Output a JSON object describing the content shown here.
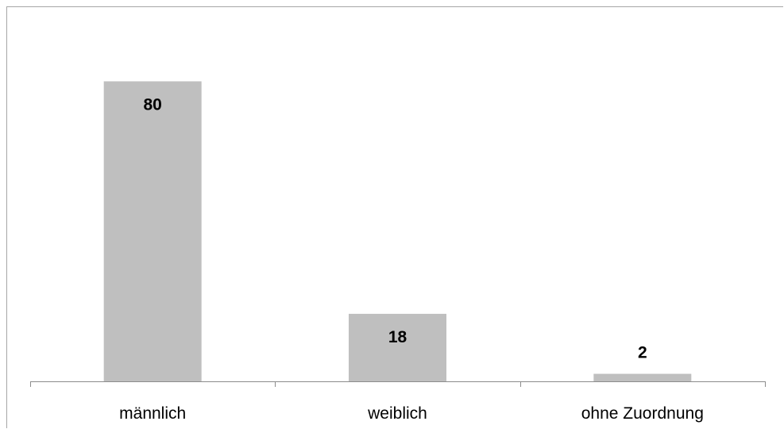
{
  "chart_data": {
    "type": "bar",
    "categories": [
      "männlich",
      "weiblich",
      "ohne Zuordnung"
    ],
    "values": [
      80,
      18,
      2
    ],
    "data_labels": [
      "80",
      "18",
      "2"
    ],
    "title": "",
    "xlabel": "",
    "ylabel": "",
    "ylim": [
      0,
      100
    ],
    "grid": false,
    "legend": "none",
    "y_axis_visible": false
  },
  "colors": {
    "bar": "#bfbfbf",
    "axis": "#8c8c8c",
    "border": "#a6a6a6",
    "text": "#000000"
  }
}
